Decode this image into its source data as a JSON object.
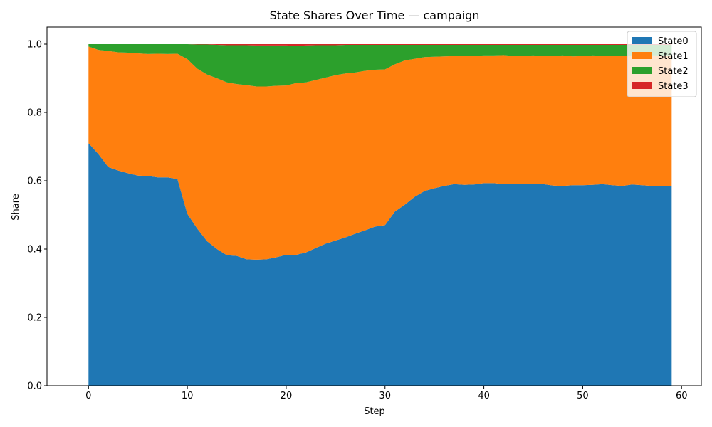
{
  "chart_data": {
    "type": "area",
    "title": "State Shares Over Time — campaign",
    "xlabel": "Step",
    "ylabel": "Share",
    "xlim": [
      -4.2,
      62
    ],
    "ylim": [
      0,
      1.05
    ],
    "xticks": [
      0,
      10,
      20,
      30,
      40,
      50,
      60
    ],
    "xtick_labels": [
      "0",
      "10",
      "20",
      "30",
      "40",
      "50",
      "60"
    ],
    "yticks": [
      0,
      0.2,
      0.4,
      0.6,
      0.8,
      1.0
    ],
    "ytick_labels": [
      "0.0",
      "0.2",
      "0.4",
      "0.6",
      "0.8",
      "1.0"
    ],
    "legend_position": "top-right",
    "x": [
      0,
      1,
      2,
      3,
      4,
      5,
      6,
      7,
      8,
      9,
      10,
      11,
      12,
      13,
      14,
      15,
      16,
      17,
      18,
      19,
      20,
      21,
      22,
      23,
      24,
      25,
      26,
      27,
      28,
      29,
      30,
      31,
      32,
      33,
      34,
      35,
      36,
      37,
      38,
      39,
      40,
      41,
      42,
      43,
      44,
      45,
      46,
      47,
      48,
      49,
      50,
      51,
      52,
      53,
      54,
      55,
      56,
      57,
      58,
      59
    ],
    "series": [
      {
        "name": "State0",
        "color": "#1f77b4",
        "values": [
          0.71,
          0.678,
          0.64,
          0.63,
          0.622,
          0.615,
          0.614,
          0.61,
          0.61,
          0.605,
          0.503,
          0.46,
          0.423,
          0.4,
          0.382,
          0.38,
          0.37,
          0.369,
          0.37,
          0.376,
          0.383,
          0.383,
          0.39,
          0.403,
          0.416,
          0.425,
          0.434,
          0.445,
          0.455,
          0.466,
          0.47,
          0.51,
          0.53,
          0.553,
          0.57,
          0.578,
          0.585,
          0.59,
          0.588,
          0.589,
          0.593,
          0.593,
          0.59,
          0.591,
          0.59,
          0.591,
          0.59,
          0.586,
          0.585,
          0.587,
          0.587,
          0.588,
          0.59,
          0.587,
          0.585,
          0.589,
          0.587,
          0.585,
          0.585,
          0.585
        ]
      },
      {
        "name": "State1",
        "color": "#ff7f0e",
        "values": [
          0.283,
          0.305,
          0.34,
          0.346,
          0.353,
          0.358,
          0.357,
          0.362,
          0.361,
          0.367,
          0.453,
          0.468,
          0.488,
          0.5,
          0.506,
          0.503,
          0.51,
          0.507,
          0.506,
          0.502,
          0.496,
          0.503,
          0.498,
          0.492,
          0.486,
          0.484,
          0.48,
          0.472,
          0.467,
          0.459,
          0.456,
          0.431,
          0.422,
          0.404,
          0.392,
          0.385,
          0.379,
          0.375,
          0.378,
          0.377,
          0.374,
          0.374,
          0.378,
          0.374,
          0.376,
          0.376,
          0.375,
          0.38,
          0.382,
          0.377,
          0.378,
          0.379,
          0.376,
          0.379,
          0.381,
          0.378,
          0.38,
          0.382,
          0.382,
          0.382
        ]
      },
      {
        "name": "State2",
        "color": "#2ca02c",
        "values": [
          0.007,
          0.017,
          0.02,
          0.024,
          0.025,
          0.027,
          0.029,
          0.028,
          0.029,
          0.028,
          0.044,
          0.071,
          0.088,
          0.098,
          0.109,
          0.114,
          0.117,
          0.12,
          0.12,
          0.118,
          0.117,
          0.109,
          0.108,
          0.102,
          0.095,
          0.088,
          0.084,
          0.081,
          0.076,
          0.073,
          0.072,
          0.057,
          0.046,
          0.041,
          0.036,
          0.035,
          0.034,
          0.033,
          0.032,
          0.032,
          0.031,
          0.031,
          0.03,
          0.033,
          0.032,
          0.031,
          0.033,
          0.032,
          0.031,
          0.034,
          0.033,
          0.031,
          0.032,
          0.032,
          0.032,
          0.031,
          0.031,
          0.031,
          0.031,
          0.031
        ]
      },
      {
        "name": "State3",
        "color": "#d62728",
        "values": [
          0,
          0,
          0,
          0,
          0,
          0,
          0,
          0,
          0,
          0,
          0,
          0.001,
          0.001,
          0.002,
          0.003,
          0.003,
          0.003,
          0.004,
          0.004,
          0.004,
          0.004,
          0.005,
          0.004,
          0.003,
          0.003,
          0.003,
          0.002,
          0.002,
          0.002,
          0.002,
          0.002,
          0.002,
          0.002,
          0.002,
          0.002,
          0.002,
          0.002,
          0.002,
          0.002,
          0.002,
          0.002,
          0.002,
          0.002,
          0.002,
          0.002,
          0.002,
          0.002,
          0.002,
          0.002,
          0.002,
          0.002,
          0.002,
          0.002,
          0.002,
          0.002,
          0.002,
          0.002,
          0.002,
          0.002,
          0.002
        ]
      }
    ]
  }
}
